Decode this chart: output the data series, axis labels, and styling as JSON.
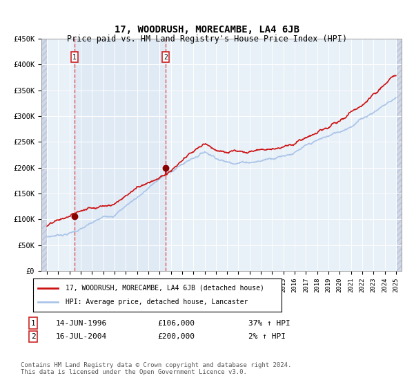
{
  "title": "17, WOODRUSH, MORECAMBE, LA4 6JB",
  "subtitle": "Price paid vs. HM Land Registry's House Price Index (HPI)",
  "legend_line1": "17, WOODRUSH, MORECAMBE, LA4 6JB (detached house)",
  "legend_line2": "HPI: Average price, detached house, Lancaster",
  "annotation1_date": "14-JUN-1996",
  "annotation1_price": "£106,000",
  "annotation1_hpi": "37% ↑ HPI",
  "annotation2_date": "16-JUL-2004",
  "annotation2_price": "£200,000",
  "annotation2_hpi": "2% ↑ HPI",
  "footer": "Contains HM Land Registry data © Crown copyright and database right 2024.\nThis data is licensed under the Open Government Licence v3.0.",
  "sale1_year": 1996.45,
  "sale1_value": 106000,
  "sale2_year": 2004.54,
  "sale2_value": 200000,
  "hpi_color": "#aac4e8",
  "price_color": "#cc1111",
  "sale_dot_color": "#880000",
  "ylim": [
    0,
    450000
  ],
  "xlim_start": 1993.5,
  "xlim_end": 2025.5,
  "yticks": [
    0,
    50000,
    100000,
    150000,
    200000,
    250000,
    300000,
    350000,
    400000,
    450000
  ],
  "ylabels": [
    "£0",
    "£50K",
    "£100K",
    "£150K",
    "£200K",
    "£250K",
    "£300K",
    "£350K",
    "£400K",
    "£450K"
  ]
}
